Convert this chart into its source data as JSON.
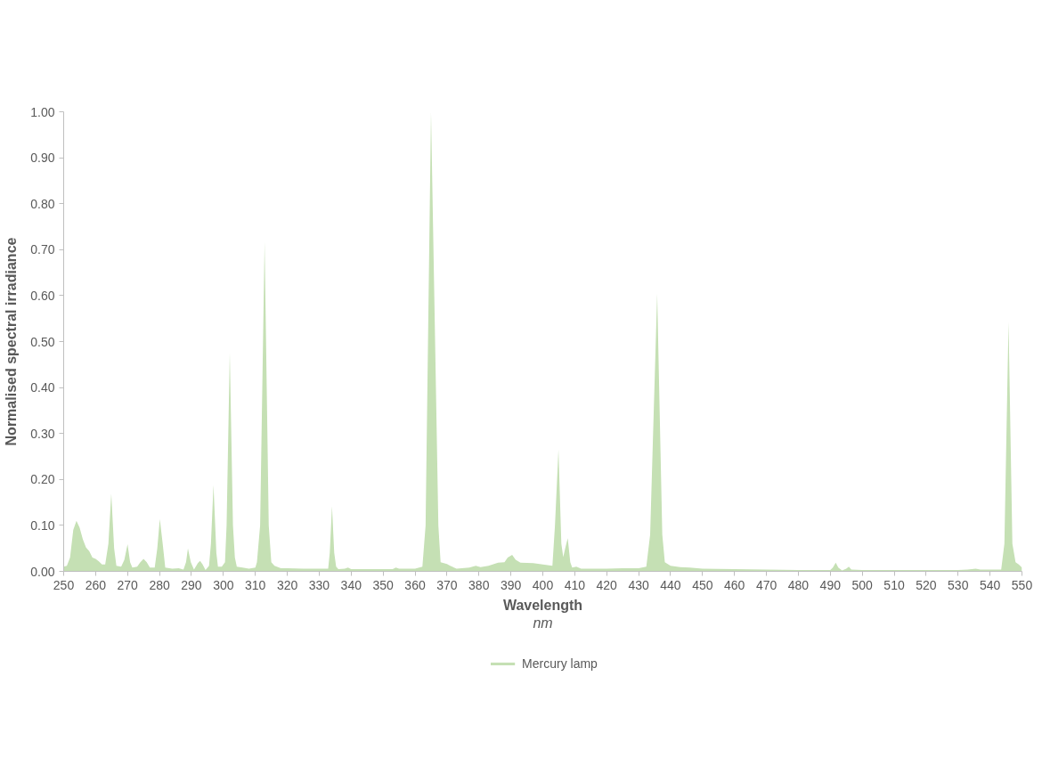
{
  "chart_data": {
    "type": "area",
    "xlabel": "Wavelength\nnm",
    "ylabel": "Normalised spectral irradiance",
    "xlim": [
      250,
      550
    ],
    "ylim": [
      0,
      1.0
    ],
    "xticks": [
      250,
      260,
      270,
      280,
      290,
      300,
      310,
      320,
      330,
      340,
      350,
      360,
      370,
      380,
      390,
      400,
      410,
      420,
      430,
      440,
      450,
      460,
      470,
      480,
      490,
      500,
      510,
      520,
      530,
      540,
      550
    ],
    "yticks": [
      {
        "value": 0,
        "label": "0.00"
      },
      {
        "value": 0.1,
        "label": "0.10"
      },
      {
        "value": 0.2,
        "label": "0.20"
      },
      {
        "value": 0.3,
        "label": "0.30"
      },
      {
        "value": 0.4,
        "label": "0.40"
      },
      {
        "value": 0.5,
        "label": "0.50"
      },
      {
        "value": 0.6,
        "label": "0.60"
      },
      {
        "value": 0.7,
        "label": "0.70"
      },
      {
        "value": 0.8,
        "label": "0.80"
      },
      {
        "value": 0.9,
        "label": "0.90"
      },
      {
        "value": 1.0,
        "label": "1.00"
      }
    ],
    "legend": "bottom",
    "x": [
      250,
      251,
      252,
      253,
      254,
      255,
      256,
      257,
      258,
      259,
      260,
      261,
      262,
      263,
      264,
      264.9,
      265.8,
      266.5,
      268,
      269,
      270,
      270.8,
      271.5,
      273,
      274,
      275,
      276,
      277,
      278.5,
      279.3,
      280.1,
      281,
      281.8,
      284,
      286,
      287.5,
      288.3,
      288.9,
      289.8,
      290.8,
      292,
      292.7,
      293.5,
      294.4,
      295.5,
      296.1,
      296.9,
      297.8,
      298.3,
      299.5,
      300.5,
      301,
      302,
      303,
      303.6,
      304.2,
      306,
      308,
      310,
      310.5,
      311.5,
      312.9,
      314.2,
      315,
      316,
      318,
      320,
      325,
      330,
      332.8,
      333.3,
      334,
      334.7,
      335.3,
      336,
      338,
      339,
      340,
      345,
      350,
      353,
      354,
      355,
      360,
      362.3,
      363.3,
      365,
      367.3,
      368,
      370,
      371,
      373,
      377,
      379,
      380.5,
      383,
      386,
      388,
      389,
      390.4,
      391.5,
      393,
      397,
      400,
      403,
      403.8,
      404.9,
      405.8,
      406.4,
      407,
      407.8,
      408.6,
      409.2,
      410.5,
      412,
      415,
      420,
      425,
      430,
      432.4,
      433.6,
      435.8,
      437.4,
      438.2,
      440,
      443,
      446,
      450,
      460,
      470,
      480,
      490,
      490.8,
      491.7,
      492.5,
      493.7,
      495,
      495.8,
      496.6,
      500,
      510,
      520,
      530,
      533,
      535.5,
      537,
      543.5,
      544.5,
      545.8,
      547,
      548,
      549,
      550
    ],
    "series": [
      {
        "name": "Mercury lamp",
        "color": "#c5e0b4",
        "values": [
          0.01,
          0.012,
          0.03,
          0.09,
          0.11,
          0.095,
          0.07,
          0.052,
          0.044,
          0.03,
          0.027,
          0.022,
          0.015,
          0.015,
          0.06,
          0.169,
          0.05,
          0.012,
          0.01,
          0.025,
          0.059,
          0.02,
          0.008,
          0.01,
          0.02,
          0.027,
          0.02,
          0.008,
          0.008,
          0.05,
          0.114,
          0.06,
          0.008,
          0.006,
          0.007,
          0.004,
          0.02,
          0.05,
          0.02,
          0.004,
          0.018,
          0.023,
          0.015,
          0.003,
          0.012,
          0.06,
          0.188,
          0.04,
          0.01,
          0.01,
          0.02,
          0.1,
          0.476,
          0.1,
          0.03,
          0.01,
          0.008,
          0.006,
          0.008,
          0.02,
          0.1,
          0.717,
          0.1,
          0.02,
          0.012,
          0.007,
          0.007,
          0.006,
          0.006,
          0.006,
          0.04,
          0.142,
          0.04,
          0.01,
          0.005,
          0.006,
          0.008,
          0.005,
          0.005,
          0.005,
          0.005,
          0.008,
          0.006,
          0.006,
          0.01,
          0.1,
          1.0,
          0.1,
          0.02,
          0.016,
          0.012,
          0.006,
          0.008,
          0.012,
          0.009,
          0.012,
          0.019,
          0.02,
          0.03,
          0.036,
          0.025,
          0.019,
          0.018,
          0.015,
          0.012,
          0.1,
          0.265,
          0.06,
          0.031,
          0.05,
          0.072,
          0.02,
          0.008,
          0.01,
          0.006,
          0.006,
          0.006,
          0.007,
          0.007,
          0.01,
          0.08,
          0.604,
          0.08,
          0.02,
          0.012,
          0.009,
          0.008,
          0.006,
          0.005,
          0.004,
          0.003,
          0.003,
          0.008,
          0.019,
          0.008,
          0.002,
          0.006,
          0.01,
          0.004,
          0.003,
          0.003,
          0.003,
          0.003,
          0.004,
          0.006,
          0.004,
          0.004,
          0.06,
          0.543,
          0.06,
          0.02,
          0.015,
          0.008
        ]
      }
    ]
  }
}
